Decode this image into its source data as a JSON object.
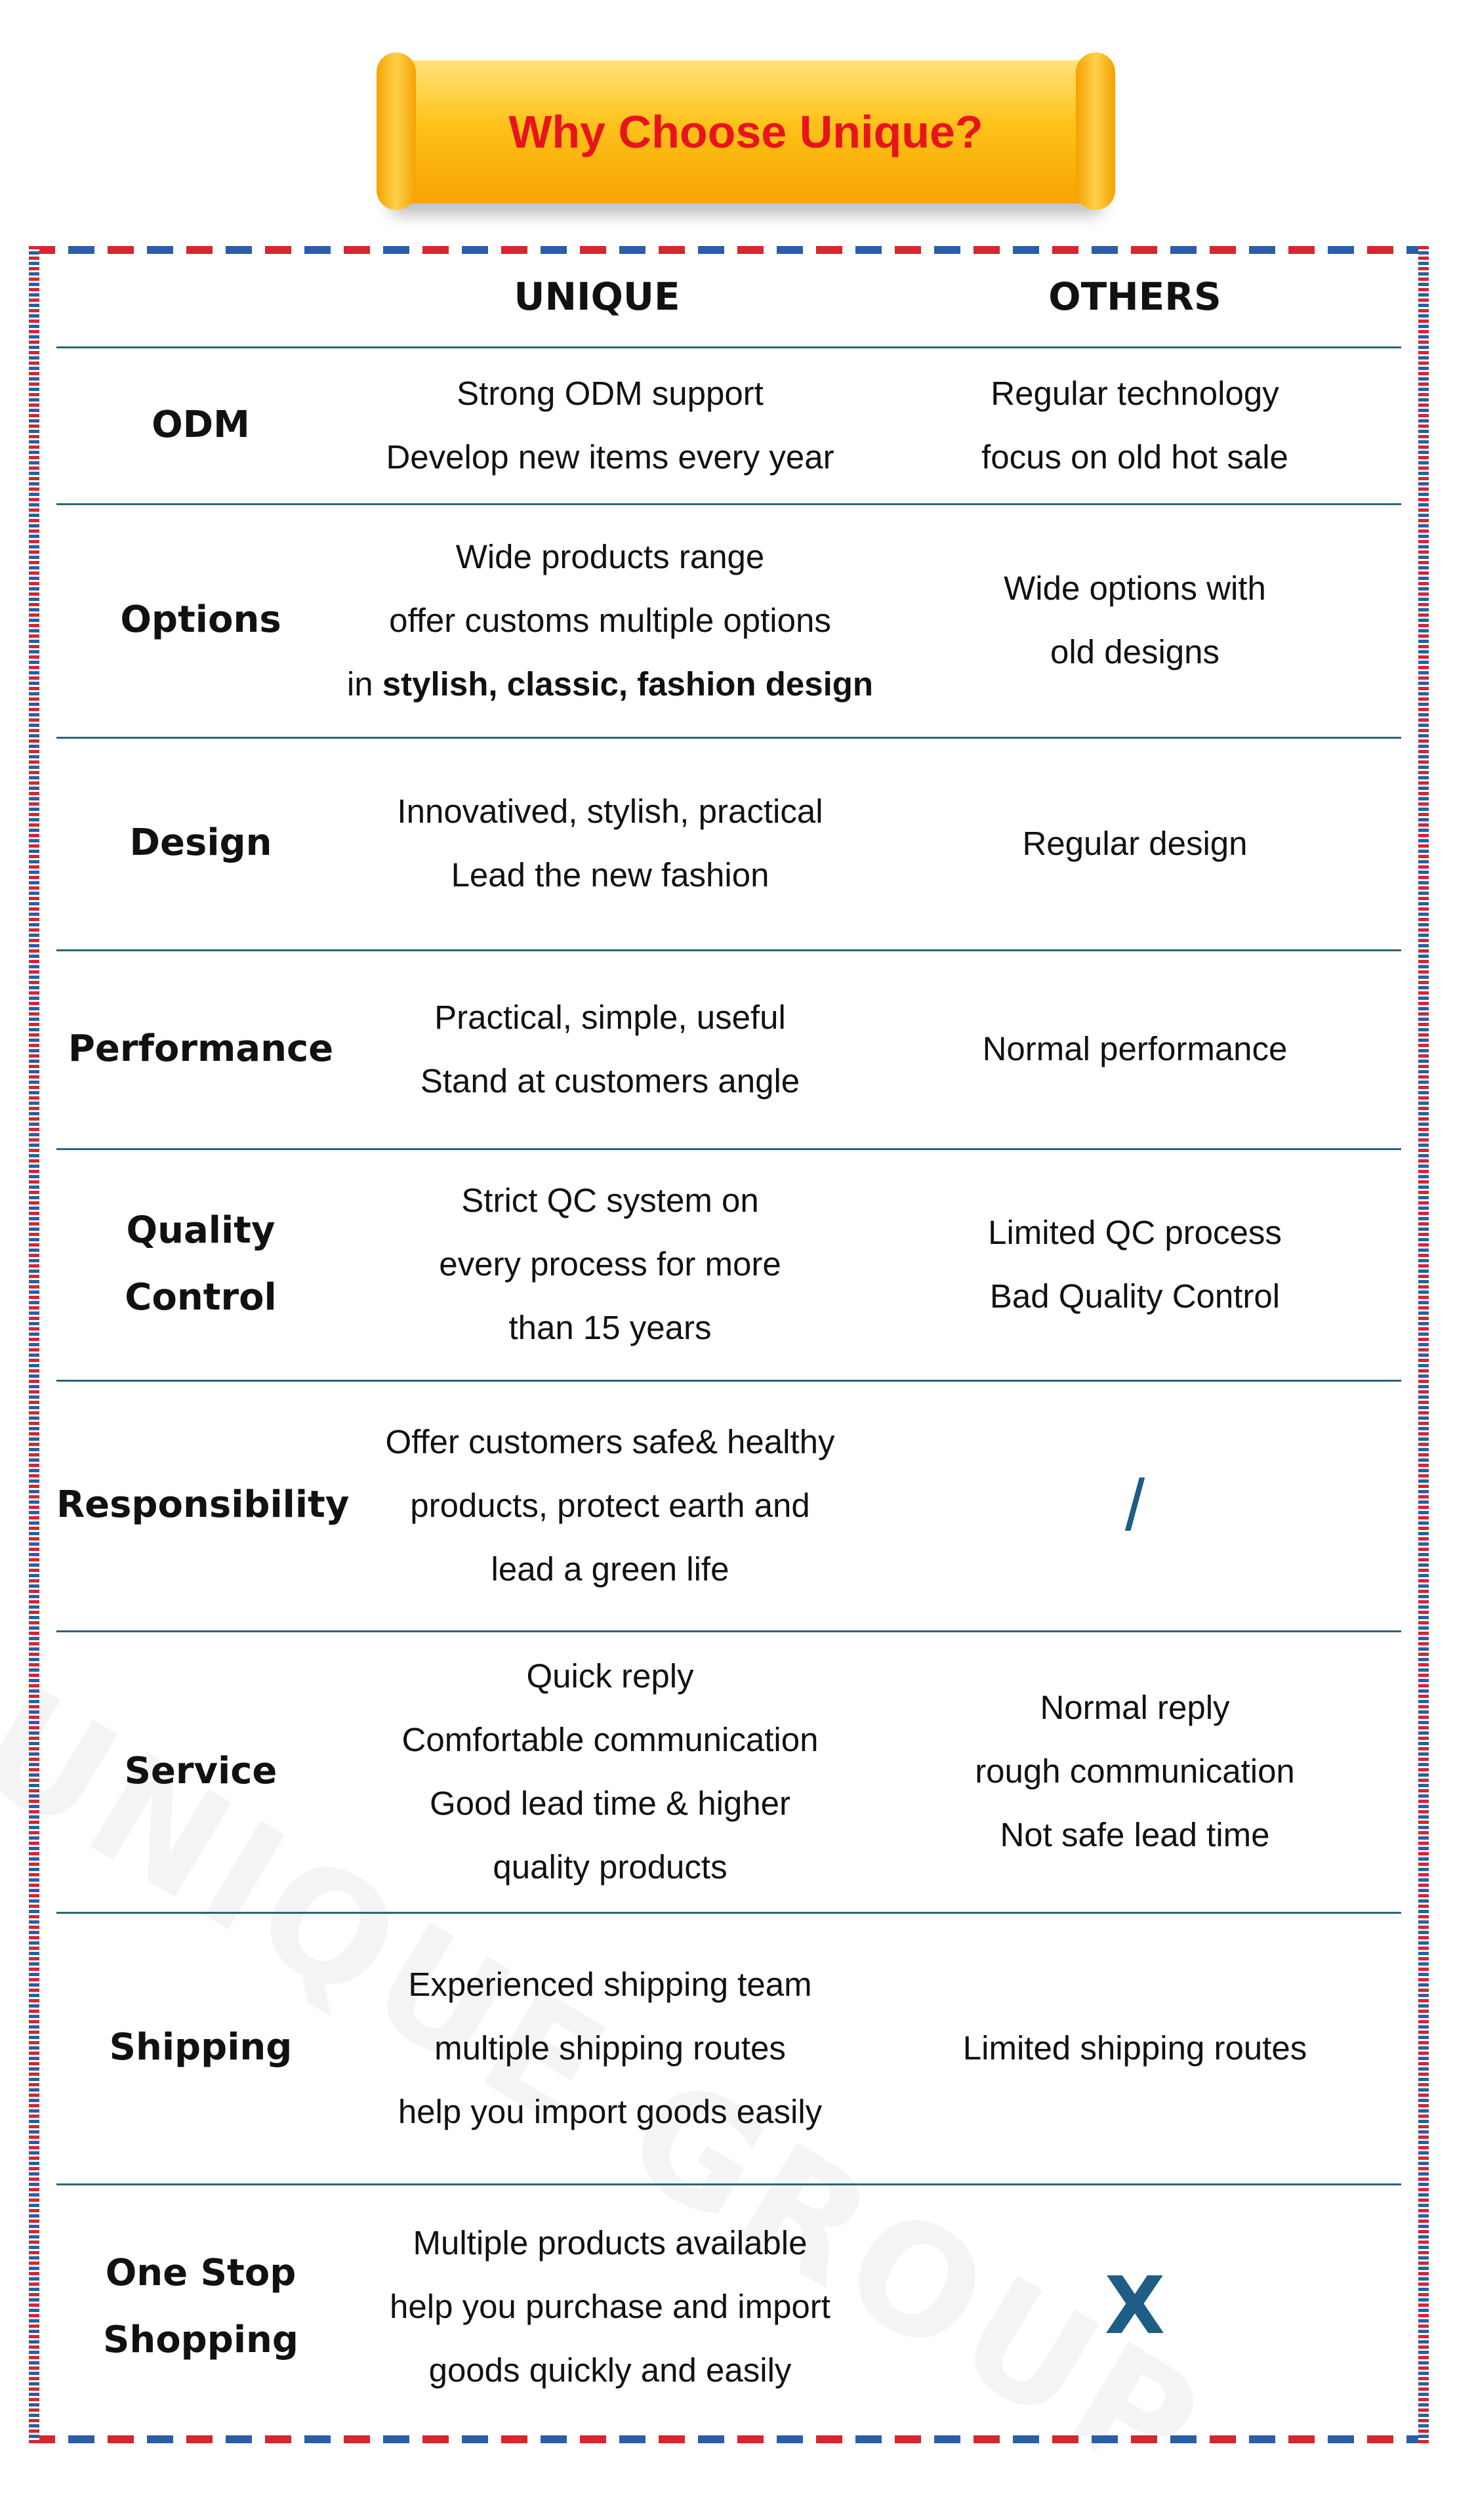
{
  "header": {
    "title": "Why Choose Unique?"
  },
  "watermark": "UNIQUE GROUP",
  "table": {
    "columns": [
      "UNIQUE",
      "OTHERS"
    ],
    "rows": [
      {
        "label": [
          "ODM"
        ],
        "unique": [
          "Strong ODM support",
          "Develop new items every year"
        ],
        "others": [
          "Regular technology",
          "focus on old hot sale"
        ]
      },
      {
        "label": [
          "Options"
        ],
        "unique": [
          "Wide products range",
          "offer customs multiple options",
          [
            {
              "text": "in "
            },
            {
              "text": "stylish, classic, fashion design",
              "bold": true
            }
          ]
        ],
        "others": [
          "Wide options with",
          "old designs"
        ]
      },
      {
        "label": [
          "Design"
        ],
        "unique": [
          "Innovatived, stylish, practical",
          "Lead the new fashion"
        ],
        "others": [
          "Regular design"
        ]
      },
      {
        "label": [
          "Performance"
        ],
        "unique": [
          "Practical, simple, useful",
          "Stand at customers angle"
        ],
        "others": [
          "Normal performance"
        ]
      },
      {
        "label": [
          "Quality Control"
        ],
        "unique": [
          "Strict QC system on",
          "every process for more",
          "than 15 years"
        ],
        "others": [
          "Limited QC process",
          "Bad Quality Control"
        ]
      },
      {
        "label": [
          "Responsibility"
        ],
        "unique": [
          "Offer customers safe& healthy",
          "products, protect earth and",
          "lead a green life"
        ],
        "others": [
          "/"
        ]
      },
      {
        "label": [
          "Service"
        ],
        "unique": [
          "Quick reply",
          "Comfortable communication",
          "Good lead time & higher",
          "quality products"
        ],
        "others": [
          "Normal reply",
          "rough communication",
          "Not safe lead time"
        ]
      },
      {
        "label": [
          "Shipping"
        ],
        "unique": [
          "Experienced shipping team",
          "multiple shipping routes",
          "help you import goods easily"
        ],
        "others": [
          "Limited shipping routes"
        ]
      },
      {
        "label": [
          "One Stop",
          "Shopping"
        ],
        "unique": [
          "Multiple products available",
          "help you purchase and import",
          "goods quickly and easily"
        ],
        "others": [
          "X"
        ]
      }
    ]
  }
}
